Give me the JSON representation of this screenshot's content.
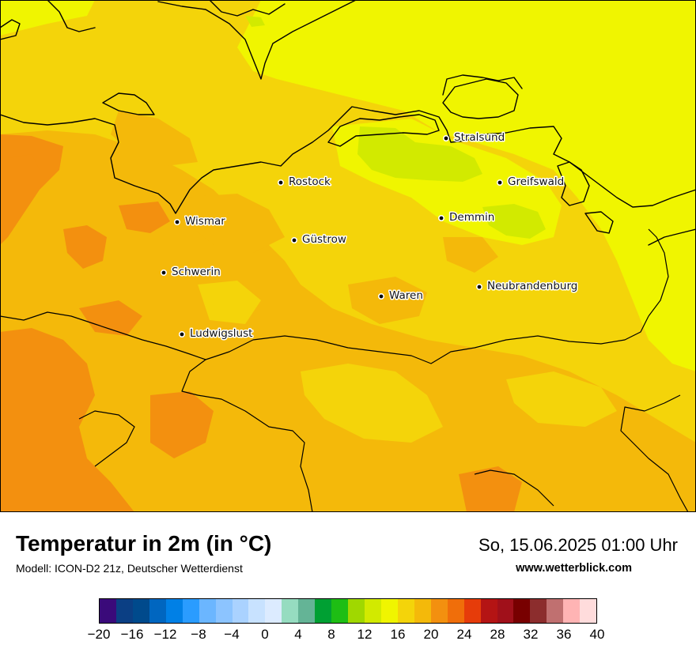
{
  "title": "Temperatur in 2m (in °C)",
  "subtitle": "Modell: ICON-D2 21z, Deutscher Wetterdienst",
  "datetime": "So, 15.06.2025 01:00 Uhr",
  "website": "www.wetterblick.com",
  "cities": [
    {
      "name": "Stralsund"
    },
    {
      "name": "Rostock"
    },
    {
      "name": "Greifswald"
    },
    {
      "name": "Wismar"
    },
    {
      "name": "Demmin"
    },
    {
      "name": "Güstrow"
    },
    {
      "name": "Schwerin"
    },
    {
      "name": "Neubrandenburg"
    },
    {
      "name": "Waren"
    },
    {
      "name": "Ludwigslust"
    }
  ],
  "colorbar": {
    "colors": [
      "#3a0a7a",
      "#0b3f84",
      "#004a8c",
      "#0066c0",
      "#0080e6",
      "#2a9cff",
      "#6bb6ff",
      "#8cc4ff",
      "#aad2ff",
      "#c8e2ff",
      "#dcebff",
      "#96dcc0",
      "#64b496",
      "#00a033",
      "#1ebe14",
      "#a0d800",
      "#d2ea00",
      "#f0f500",
      "#f4d40a",
      "#f4b90a",
      "#f3900f",
      "#f06e0a",
      "#e63c0a",
      "#b41414",
      "#a0101a",
      "#780000",
      "#8c2d2d",
      "#c07070",
      "#ffb4b4",
      "#ffdcdc"
    ],
    "ticks": [
      "−20",
      "−16",
      "−12",
      "−8",
      "−4",
      "0",
      "4",
      "8",
      "12",
      "16",
      "20",
      "24",
      "28",
      "32",
      "36",
      "40"
    ],
    "min": -20,
    "max": 40
  }
}
